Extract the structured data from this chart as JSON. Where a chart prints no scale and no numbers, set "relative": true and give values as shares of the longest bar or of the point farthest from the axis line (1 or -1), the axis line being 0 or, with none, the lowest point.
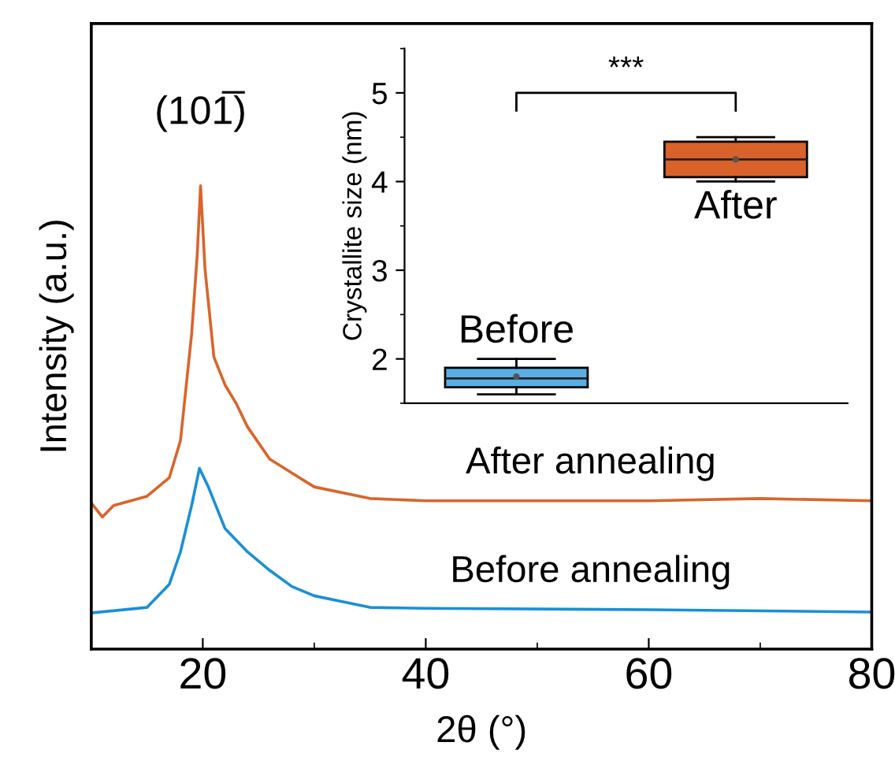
{
  "chart_data": [
    {
      "type": "line",
      "relative": true,
      "xlabel": "2θ (°)",
      "ylabel": "Intensity (a.u.)",
      "xlim": [
        10,
        80
      ],
      "xticks": [
        20,
        40,
        60,
        80
      ],
      "grid": false,
      "legend": false,
      "tick_labels": "x",
      "annotations": [
        "(101̅)"
      ],
      "series": [
        {
          "name": "After annealing",
          "color": "#d9652b",
          "x": [
            10,
            11,
            12,
            15,
            17,
            18,
            19,
            19.5,
            19.8,
            20.2,
            21,
            22,
            23,
            24,
            26,
            28,
            30,
            35,
            40,
            50,
            60,
            70,
            80
          ],
          "values": [
            0.315,
            0.285,
            0.31,
            0.33,
            0.37,
            0.45,
            0.68,
            0.85,
            1.0,
            0.82,
            0.63,
            0.57,
            0.53,
            0.48,
            0.41,
            0.38,
            0.35,
            0.325,
            0.32,
            0.32,
            0.32,
            0.325,
            0.32
          ]
        },
        {
          "name": "Before annealing",
          "color": "#1a8fd6",
          "x": [
            10,
            15,
            17,
            18,
            19,
            19.7,
            20.5,
            22,
            24,
            26,
            28,
            30,
            35,
            40,
            60,
            80
          ],
          "values": [
            0.078,
            0.09,
            0.14,
            0.21,
            0.31,
            0.39,
            0.35,
            0.26,
            0.21,
            0.17,
            0.135,
            0.115,
            0.09,
            0.088,
            0.085,
            0.08
          ]
        }
      ]
    },
    {
      "type": "box",
      "ylabel": "Crystallite size (nm)",
      "categories": [
        null,
        null
      ],
      "ylim": [
        1.5,
        5.5
      ],
      "yticks": [
        2,
        3,
        4,
        5
      ],
      "tick_labels": "y",
      "colors": [
        "#5aaee3",
        "#d9622b"
      ],
      "annotations": [
        "Before",
        "After",
        "***"
      ],
      "boxes": [
        {
          "low": 1.6,
          "q1": 1.68,
          "median": 1.78,
          "q3": 1.9,
          "high": 2.0,
          "mean": 1.8
        },
        {
          "low": 4.0,
          "q1": 4.05,
          "median": 4.25,
          "q3": 4.45,
          "high": 4.5,
          "mean": 4.25
        }
      ]
    }
  ]
}
